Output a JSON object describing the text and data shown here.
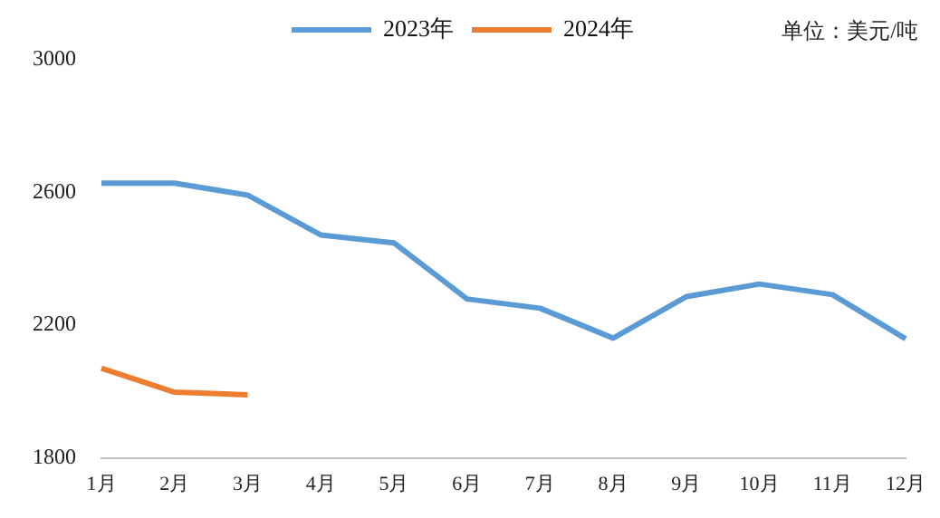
{
  "chart_data": {
    "type": "line",
    "categories": [
      "1月",
      "2月",
      "3月",
      "4月",
      "5月",
      "6月",
      "7月",
      "8月",
      "9月",
      "10月",
      "11月",
      "12月"
    ],
    "series": [
      {
        "name": "2023年",
        "color": "#5b9bd5",
        "values": [
          2628,
          2628,
          2592,
          2472,
          2448,
          2279,
          2251,
          2161,
          2286,
          2324,
          2292,
          2159
        ]
      },
      {
        "name": "2024年",
        "color": "#ed7d31",
        "values": [
          2070,
          1998,
          1990,
          null,
          null,
          null,
          null,
          null,
          null,
          null,
          null,
          null
        ]
      }
    ],
    "ylim": [
      1800,
      3000
    ],
    "yticks": [
      1800,
      2200,
      2600,
      3000
    ],
    "grid": false,
    "legend": "top",
    "marker": "none",
    "line_style": "solid",
    "annotations": [
      "单位：美元/吨"
    ]
  }
}
